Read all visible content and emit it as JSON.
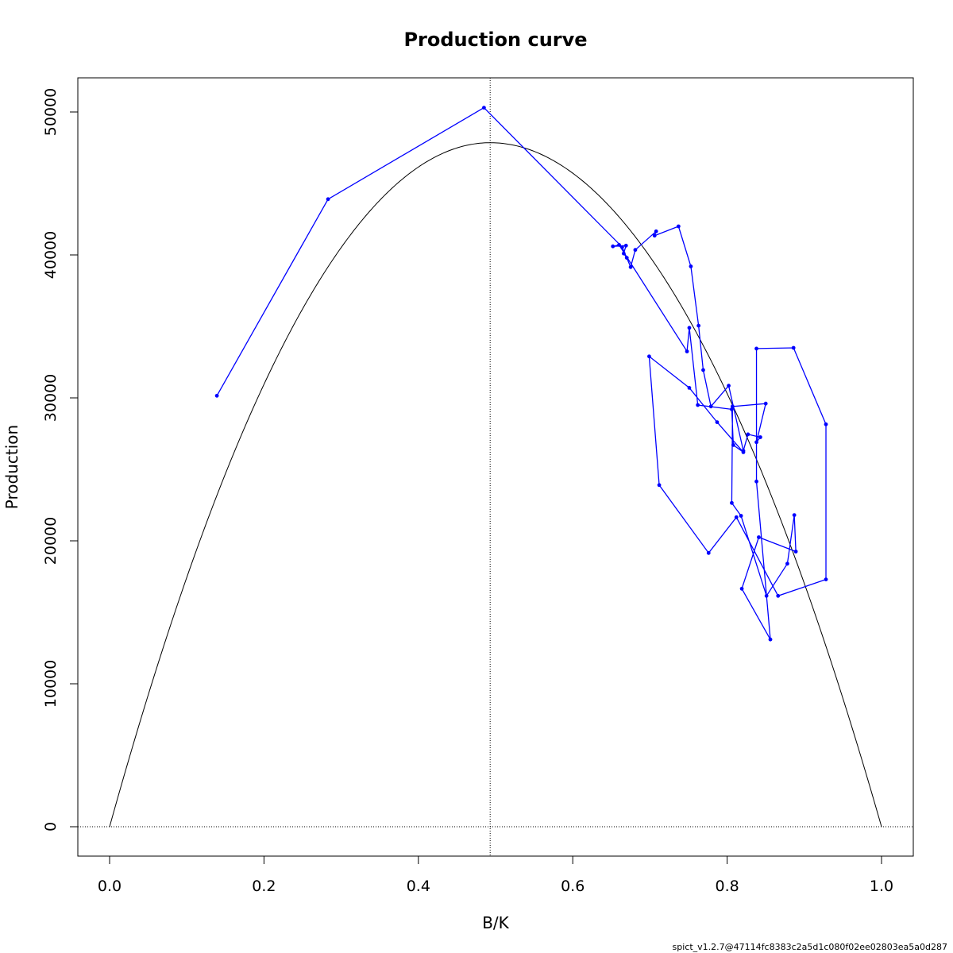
{
  "chart_data": {
    "type": "line",
    "title": "Production curve",
    "xlabel": "B/K",
    "ylabel": "Production",
    "xlim": [
      0,
      1
    ],
    "ylim": [
      0,
      50000
    ],
    "xticks": [
      "0.0",
      "0.2",
      "0.4",
      "0.6",
      "0.8",
      "1.0"
    ],
    "yticks": [
      "0",
      "10000",
      "20000",
      "30000",
      "40000",
      "50000"
    ],
    "grid": false,
    "legend": "none",
    "curve": {
      "bmsy_over_k": 0.493,
      "max_production": 47850,
      "color": "#000000"
    },
    "reference_lines": {
      "vertical_x": 0.493,
      "horizontal_y": 0,
      "style": "dotted"
    },
    "series": [
      {
        "color": "#0000ff",
        "points": [
          [
            0.139,
            30150
          ],
          [
            0.283,
            43900
          ],
          [
            0.485,
            50300
          ],
          [
            0.664,
            40550
          ],
          [
            0.675,
            39150
          ],
          [
            0.681,
            40350
          ],
          [
            0.708,
            41650
          ],
          [
            0.706,
            41350
          ],
          [
            0.737,
            42000
          ],
          [
            0.753,
            39200
          ],
          [
            0.763,
            35050
          ],
          [
            0.769,
            31950
          ],
          [
            0.779,
            29400
          ],
          [
            0.802,
            30850
          ],
          [
            0.821,
            26300
          ],
          [
            0.827,
            27450
          ],
          [
            0.843,
            27250
          ],
          [
            0.838,
            26900
          ],
          [
            0.85,
            29600
          ],
          [
            0.807,
            29400
          ],
          [
            0.806,
            22650
          ],
          [
            0.818,
            21750
          ],
          [
            0.851,
            16150
          ],
          [
            0.878,
            18400
          ],
          [
            0.887,
            21800
          ],
          [
            0.889,
            19250
          ],
          [
            0.841,
            20250
          ],
          [
            0.819,
            16650
          ],
          [
            0.856,
            13100
          ],
          [
            0.838,
            24150
          ],
          [
            0.838,
            33450
          ],
          [
            0.886,
            33500
          ],
          [
            0.928,
            28150
          ],
          [
            0.928,
            17300
          ],
          [
            0.866,
            16150
          ],
          [
            0.812,
            21650
          ],
          [
            0.776,
            19150
          ],
          [
            0.712,
            23900
          ],
          [
            0.699,
            32900
          ],
          [
            0.751,
            30700
          ],
          [
            0.787,
            28300
          ],
          [
            0.821,
            26200
          ],
          [
            0.808,
            26700
          ],
          [
            0.806,
            29200
          ],
          [
            0.762,
            29500
          ],
          [
            0.751,
            34900
          ],
          [
            0.748,
            33250
          ],
          [
            0.66,
            40700
          ],
          [
            0.652,
            40600
          ],
          [
            0.669,
            40650
          ],
          [
            0.666,
            40100
          ],
          [
            0.67,
            39800
          ]
        ]
      }
    ]
  },
  "footer": "spict_v1.2.7@47114fc8383c2a5d1c080f02ee02803ea5a0d287"
}
